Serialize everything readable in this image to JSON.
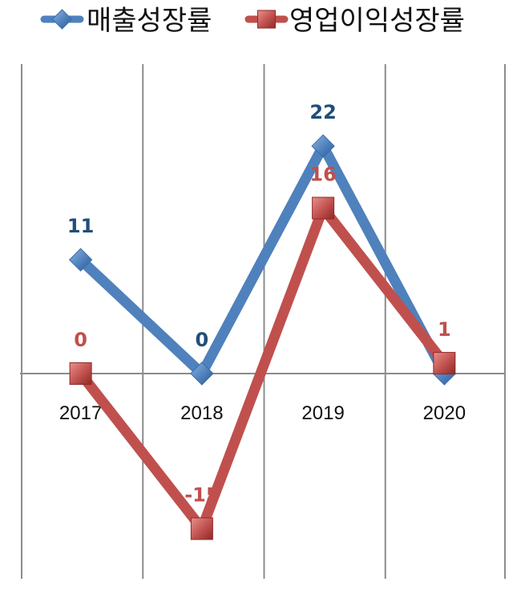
{
  "chart_data": {
    "type": "line",
    "categories": [
      "2017",
      "2018",
      "2019",
      "2020"
    ],
    "series": [
      {
        "name": "매출성장률",
        "values": [
          11,
          0,
          22,
          0
        ],
        "labels": [
          "11",
          "0",
          "22",
          ""
        ],
        "color": "#4F81BD",
        "label_color": "#1F4E79",
        "marker": "diamond"
      },
      {
        "name": "영업이익성장률",
        "values": [
          0,
          -15,
          16,
          1
        ],
        "labels": [
          "0",
          "-15",
          "16",
          "1"
        ],
        "color": "#C0504D",
        "label_color": "#C0504D",
        "marker": "square"
      }
    ],
    "ylim": [
      -18,
      25
    ],
    "grid": "vertical",
    "legend": "top",
    "xlabel": "",
    "ylabel": "",
    "title": ""
  }
}
